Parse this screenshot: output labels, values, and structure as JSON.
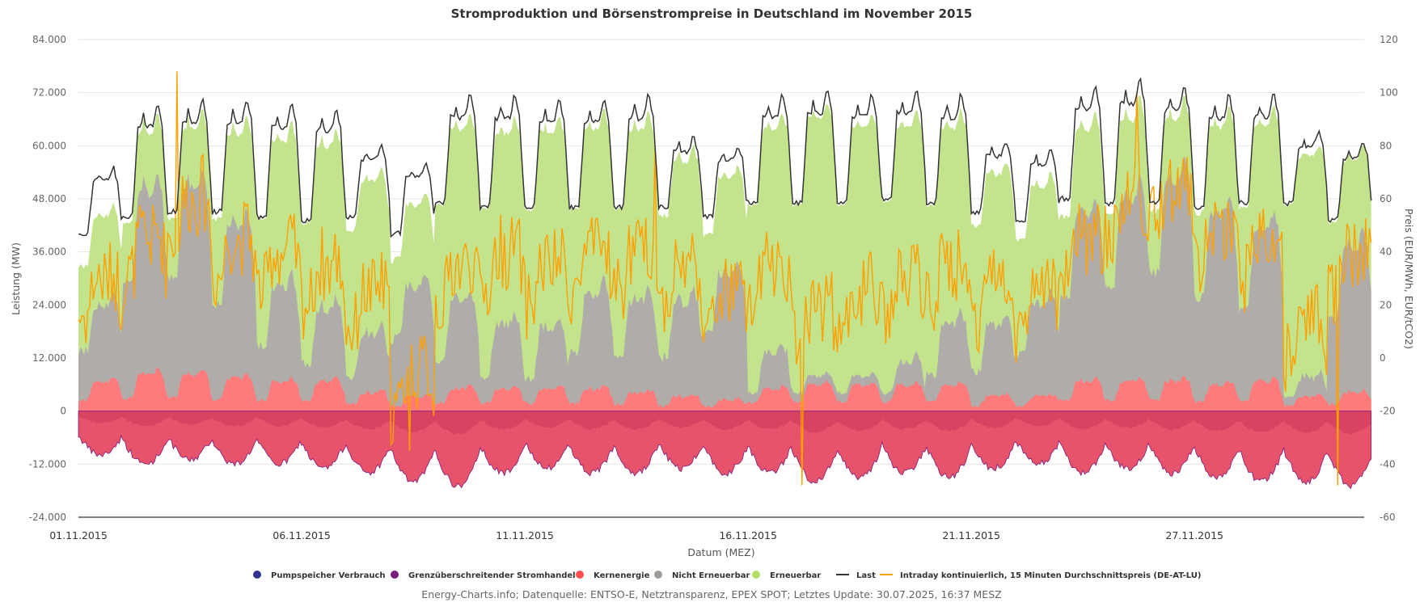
{
  "chart_data": {
    "type": "area",
    "title": "Stromproduktion und Börsenstrompreise in Deutschland im November 2015",
    "xlabel": "Datum (MEZ)",
    "ylabel_left": "Leistung (MW)",
    "ylabel_right": "Preis (EUR/MWh, EUR/tCO2)",
    "ylim_left": [
      -24000,
      84000
    ],
    "ylim_right": [
      -60,
      120
    ],
    "yticks_left": [
      "84.000",
      "72.000",
      "60.000",
      "48.000",
      "36.000",
      "24.000",
      "12.000",
      "0",
      "-12.000",
      "-24.000"
    ],
    "yticks_right": [
      "120",
      "100",
      "80",
      "60",
      "40",
      "20",
      "0",
      "-20",
      "-40",
      "-60"
    ],
    "xticks": [
      {
        "label": "01.11.2015",
        "day": 0
      },
      {
        "label": "06.11.2015",
        "day": 5
      },
      {
        "label": "11.11.2015",
        "day": 10
      },
      {
        "label": "16.11.2015",
        "day": 15
      },
      {
        "label": "21.11.2015",
        "day": 20
      },
      {
        "label": "27.11.2015",
        "day": 25
      }
    ],
    "x_range_days": [
      0,
      28.8
    ],
    "grid": true,
    "legend_position": "bottom",
    "legend": [
      {
        "name": "Pumpspeicher Verbrauch",
        "color": "#2f3590",
        "marker": "circle"
      },
      {
        "name": "Grenzüberschreitender Stromhandel",
        "color": "#7b1c7d",
        "marker": "circle"
      },
      {
        "name": "Kernenergie",
        "color": "#ff5050",
        "marker": "circle"
      },
      {
        "name": "Nicht Erneuerbar",
        "color": "#9e9a98",
        "marker": "circle"
      },
      {
        "name": "Erneuerbar",
        "color": "#b2de68",
        "marker": "circle"
      },
      {
        "name": "Last",
        "color": "#333333",
        "marker": "line"
      },
      {
        "name": "Intraday kontinuierlich, 15 Minuten Durchschnittspreis (DE-AT-LU)",
        "color": "#ffa000",
        "marker": "line"
      }
    ],
    "daily_series": {
      "days": [
        "01.11",
        "02.11",
        "03.11",
        "04.11",
        "05.11",
        "06.11",
        "07.11",
        "08.11",
        "09.11",
        "10.11",
        "11.11",
        "12.11",
        "13.11",
        "14.11",
        "15.11",
        "16.11",
        "17.11",
        "18.11",
        "19.11",
        "20.11",
        "21.11",
        "22.11",
        "23.11",
        "24.11",
        "25.11",
        "26.11",
        "27.11",
        "28.11",
        "29.11"
      ],
      "last_peak_mw": [
        56000,
        71000,
        72000,
        72000,
        71000,
        70000,
        61000,
        57000,
        73000,
        73000,
        72000,
        72000,
        73000,
        63000,
        61000,
        73000,
        74000,
        73000,
        74000,
        73000,
        62000,
        60000,
        75000,
        77000,
        75000,
        73000,
        73000,
        64000,
        62000
      ],
      "last_trough_mw": [
        40000,
        44000,
        45000,
        45000,
        44000,
        43000,
        44000,
        40000,
        47000,
        46000,
        46000,
        46000,
        46000,
        46000,
        44000,
        47000,
        47000,
        47000,
        48000,
        47000,
        45000,
        43000,
        48000,
        47000,
        47000,
        46000,
        47000,
        47000,
        43000
      ],
      "nonrenewable_peak_mw": [
        30000,
        59000,
        60000,
        52000,
        40000,
        35000,
        28000,
        35000,
        38000,
        33000,
        33000,
        40000,
        38000,
        36000,
        40000,
        28000,
        20000,
        22000,
        26000,
        34000,
        30000,
        33000,
        54000,
        58000,
        62000,
        55000,
        52000,
        22000,
        48000
      ],
      "renewable_share_mw": [
        10000,
        10000,
        10000,
        15000,
        25000,
        28000,
        25000,
        10000,
        30000,
        33000,
        35000,
        30000,
        30000,
        25000,
        15000,
        40000,
        48000,
        45000,
        42000,
        35000,
        25000,
        18000,
        12000,
        12000,
        10000,
        15000,
        18000,
        40000,
        18000
      ],
      "nuclear_peak_mw": [
        8000,
        10000,
        10000,
        9000,
        8000,
        8000,
        5000,
        4000,
        6000,
        6000,
        6000,
        6000,
        5000,
        4000,
        3000,
        6000,
        7000,
        7000,
        7000,
        7000,
        4000,
        4000,
        8000,
        8000,
        8000,
        7000,
        8000,
        4000,
        5000
      ],
      "export_min_mw": [
        -10000,
        -12000,
        -11000,
        -12000,
        -12000,
        -13000,
        -14000,
        -16000,
        -17000,
        -14000,
        -13000,
        -14000,
        -14000,
        -13000,
        -14000,
        -14000,
        -16000,
        -15000,
        -14000,
        -15000,
        -13000,
        -12000,
        -14000,
        -13000,
        -14000,
        -15000,
        -16000,
        -16000,
        -17000
      ],
      "price_avg_eur": [
        25,
        40,
        55,
        40,
        35,
        30,
        20,
        -10,
        30,
        35,
        30,
        35,
        35,
        30,
        20,
        30,
        15,
        20,
        25,
        30,
        25,
        20,
        40,
        55,
        60,
        45,
        40,
        10,
        35
      ],
      "price_spikes_eur": [
        {
          "day": 2.2,
          "value": 108
        },
        {
          "day": 7.4,
          "value": -35
        },
        {
          "day": 12.9,
          "value": 80
        },
        {
          "day": 16.2,
          "value": -48
        },
        {
          "day": 23.7,
          "value": 100
        },
        {
          "day": 28.2,
          "value": -48
        }
      ]
    }
  },
  "footer": {
    "credits": "Energy-Charts.info; Datenquelle: ENTSO-E, Netztransparenz, EPEX SPOT; Letztes Update: 30.07.2025, 16:37 MESZ"
  }
}
